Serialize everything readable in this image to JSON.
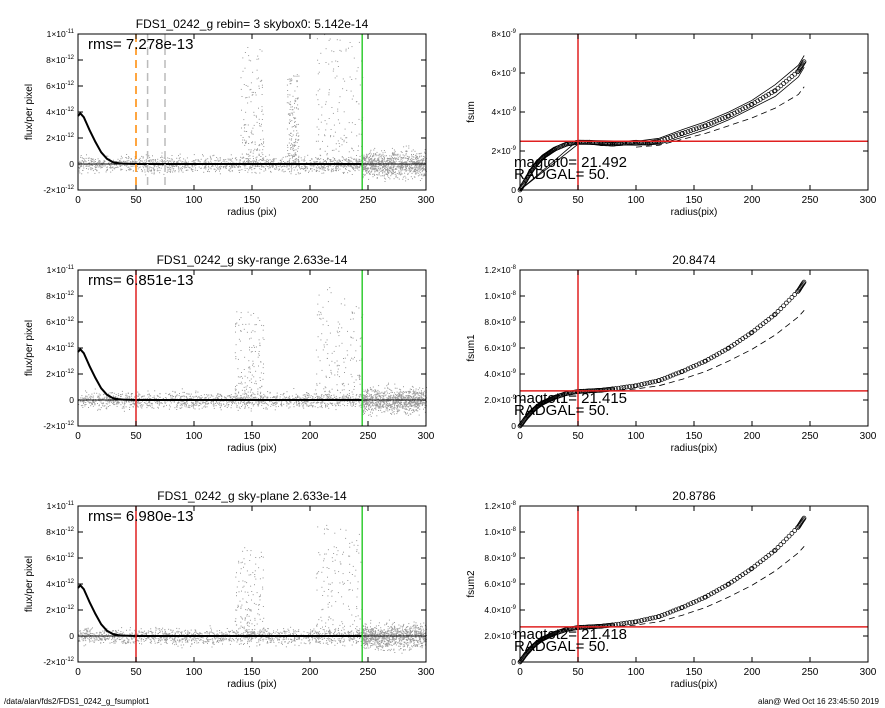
{
  "footer": {
    "left": "/data/alan/fds2/FDS1_0242_g_fsumplot1",
    "right": "alan@  Wed Oct 16 23:45:50 2019"
  },
  "colors": {
    "points": "#999999",
    "profile": "#000000",
    "red_line": "#e02020",
    "green_line": "#33cc33",
    "orange_dash": "#ff8800",
    "gray_dash": "#bbbbbb"
  },
  "chart_data": [
    {
      "type": "scatter",
      "title": "FDS1_0242_g rebin= 3    skybox0:  5.142e-14",
      "xlabel": "radius (pix)",
      "ylabel": "flux/per pixel",
      "xlim": [
        0,
        300
      ],
      "ylim": [
        -2e-12,
        1e-11
      ],
      "xticks": [
        0,
        50,
        100,
        150,
        200,
        250,
        300
      ],
      "yticks": [
        {
          "v": 1e-11,
          "m": "1×10",
          "e": "-11"
        },
        {
          "v": 8e-12,
          "m": "8×10",
          "e": "-12"
        },
        {
          "v": 6e-12,
          "m": "6×10",
          "e": "-12"
        },
        {
          "v": 4e-12,
          "m": "4×10",
          "e": "-12"
        },
        {
          "v": 2e-12,
          "m": "2×10",
          "e": "-12"
        },
        {
          "v": 0,
          "m": "0",
          "e": ""
        },
        {
          "v": -2e-12,
          "m": "-2×10",
          "e": "-12"
        }
      ],
      "annotations": [
        {
          "text": "rms= 7.278e-13"
        }
      ],
      "vlines": [
        {
          "x": 50,
          "color": "orange_dash",
          "style": "dash"
        },
        {
          "x": 60,
          "color": "gray_dash",
          "style": "dash"
        },
        {
          "x": 75,
          "color": "gray_dash",
          "style": "dash"
        },
        {
          "x": 245,
          "color": "green_line",
          "style": "solid"
        }
      ],
      "profile": {
        "x": [
          0,
          2,
          5,
          8,
          10,
          15,
          20,
          25,
          30,
          35,
          40,
          50,
          60,
          80,
          100,
          150,
          200,
          245
        ],
        "y": [
          3.7e-12,
          3.9e-12,
          3.6e-12,
          3e-12,
          2.6e-12,
          1.7e-12,
          9e-13,
          4e-13,
          1.5e-13,
          6e-14,
          2e-14,
          0,
          0,
          0,
          0,
          0,
          0,
          0
        ]
      },
      "scatter_clusters": [
        {
          "x": [
            0,
            250
          ],
          "y": [
            -1e-12,
            1e-12
          ]
        },
        {
          "x": [
            140,
            160
          ],
          "y": [
            0,
            9e-12
          ]
        },
        {
          "x": [
            180,
            190
          ],
          "y": [
            0,
            7e-12
          ]
        },
        {
          "x": [
            205,
            245
          ],
          "y": [
            0,
            1e-11
          ]
        },
        {
          "x": [
            245,
            300
          ],
          "y": [
            -1.8e-12,
            1.5e-12
          ]
        }
      ]
    },
    {
      "type": "line",
      "title": "",
      "xlabel": "radius(pix)",
      "ylabel": "fsum",
      "xlim": [
        0,
        300
      ],
      "ylim": [
        0,
        8e-09
      ],
      "xticks": [
        0,
        50,
        100,
        150,
        200,
        250,
        300
      ],
      "yticks": [
        {
          "v": 8e-09,
          "m": "8×10",
          "e": "-9"
        },
        {
          "v": 6e-09,
          "m": "6×10",
          "e": "-9"
        },
        {
          "v": 4e-09,
          "m": "4×10",
          "e": "-9"
        },
        {
          "v": 2e-09,
          "m": "2×10",
          "e": "-9"
        },
        {
          "v": 0,
          "m": "0",
          "e": ""
        }
      ],
      "annotations": [
        {
          "text": "magtot0=  21.492"
        },
        {
          "text": "RADGAL=    50."
        }
      ],
      "vline": 50,
      "hline": 2.5e-09,
      "series": [
        {
          "x": [
            0,
            5,
            10,
            15,
            20,
            25,
            30,
            40,
            50,
            60,
            70,
            80,
            90,
            100,
            110,
            120,
            140,
            160,
            180,
            200,
            220,
            240,
            245
          ],
          "y": [
            0,
            5e-10,
            1e-09,
            1.4e-09,
            1.7e-09,
            1.9e-09,
            2.1e-09,
            2.35e-09,
            2.45e-09,
            2.45e-09,
            2.38e-09,
            2.35e-09,
            2.4e-09,
            2.45e-09,
            2.4e-09,
            2.5e-09,
            2.9e-09,
            3.3e-09,
            3.8e-09,
            4.4e-09,
            5.1e-09,
            6.1e-09,
            6.6e-09
          ],
          "style": "circles"
        },
        {
          "x": [
            100,
            120,
            140,
            160,
            180,
            200,
            220,
            240,
            245
          ],
          "y": [
            2.2e-09,
            2.3e-09,
            2.6e-09,
            2.9e-09,
            3.3e-09,
            3.7e-09,
            4.2e-09,
            4.9e-09,
            5.3e-09
          ],
          "style": "dash"
        },
        {
          "x": [
            0,
            50,
            100,
            120,
            140,
            160,
            180,
            200,
            220,
            240,
            245
          ],
          "y": [
            0,
            2.55e-09,
            2.5e-09,
            2.65e-09,
            3.1e-09,
            3.5e-09,
            4e-09,
            4.6e-09,
            5.4e-09,
            6.4e-09,
            6.9e-09
          ],
          "style": "line"
        },
        {
          "x": [
            0,
            50,
            100,
            120,
            140,
            160,
            180,
            200,
            220,
            240,
            245
          ],
          "y": [
            0,
            2.35e-09,
            2.3e-09,
            2.35e-09,
            2.7e-09,
            3.1e-09,
            3.6e-09,
            4.2e-09,
            4.8e-09,
            5.8e-09,
            6.3e-09
          ],
          "style": "line"
        }
      ]
    },
    {
      "type": "scatter",
      "title": "FDS1_0242_g sky-range  2.633e-14",
      "xlabel": "radius (pix)",
      "ylabel": "flux/per pixel",
      "xlim": [
        0,
        300
      ],
      "ylim": [
        -2e-12,
        1e-11
      ],
      "xticks": [
        0,
        50,
        100,
        150,
        200,
        250,
        300
      ],
      "yticks": [
        {
          "v": 1e-11,
          "m": "1×10",
          "e": "-11"
        },
        {
          "v": 8e-12,
          "m": "8×10",
          "e": "-12"
        },
        {
          "v": 6e-12,
          "m": "6×10",
          "e": "-12"
        },
        {
          "v": 4e-12,
          "m": "4×10",
          "e": "-12"
        },
        {
          "v": 2e-12,
          "m": "2×10",
          "e": "-12"
        },
        {
          "v": 0,
          "m": "0",
          "e": ""
        },
        {
          "v": -2e-12,
          "m": "-2×10",
          "e": "-12"
        }
      ],
      "annotations": [
        {
          "text": "rms= 6.851e-13"
        }
      ],
      "vlines": [
        {
          "x": 50,
          "color": "red_line",
          "style": "solid"
        },
        {
          "x": 245,
          "color": "green_line",
          "style": "solid"
        }
      ],
      "profile": {
        "x": [
          0,
          2,
          5,
          8,
          10,
          15,
          20,
          25,
          30,
          35,
          40,
          50,
          60,
          80,
          100,
          150,
          200,
          245
        ],
        "y": [
          3.7e-12,
          3.9e-12,
          3.6e-12,
          3e-12,
          2.6e-12,
          1.7e-12,
          9e-13,
          4e-13,
          1.5e-13,
          6e-14,
          2e-14,
          0,
          0,
          0,
          0,
          0,
          0,
          0
        ]
      },
      "scatter_clusters": [
        {
          "x": [
            0,
            250
          ],
          "y": [
            -1e-12,
            1e-12
          ]
        },
        {
          "x": [
            135,
            160
          ],
          "y": [
            0,
            7e-12
          ]
        },
        {
          "x": [
            205,
            245
          ],
          "y": [
            0,
            9e-12
          ]
        },
        {
          "x": [
            245,
            300
          ],
          "y": [
            -1.6e-12,
            1.5e-12
          ]
        }
      ]
    },
    {
      "type": "line",
      "title": "20.8474",
      "xlabel": "radius(pix)",
      "ylabel": "fsum1",
      "xlim": [
        0,
        300
      ],
      "ylim": [
        0,
        1.2e-08
      ],
      "xticks": [
        0,
        50,
        100,
        150,
        200,
        250,
        300
      ],
      "yticks": [
        {
          "v": 1.2e-08,
          "m": "1.2×10",
          "e": "-8"
        },
        {
          "v": 1e-08,
          "m": "1.0×10",
          "e": "-8"
        },
        {
          "v": 8e-09,
          "m": "8.0×10",
          "e": "-9"
        },
        {
          "v": 6e-09,
          "m": "6.0×10",
          "e": "-9"
        },
        {
          "v": 4e-09,
          "m": "4.0×10",
          "e": "-9"
        },
        {
          "v": 2e-09,
          "m": "2.0×10",
          "e": "-9"
        },
        {
          "v": 0,
          "m": "0",
          "e": ""
        }
      ],
      "annotations": [
        {
          "text": "magtot1=  21.415"
        },
        {
          "text": "RADGAL=    50."
        }
      ],
      "vline": 50,
      "hline": 2.7e-09,
      "series": [
        {
          "x": [
            0,
            5,
            10,
            15,
            20,
            25,
            30,
            40,
            50,
            60,
            70,
            80,
            100,
            120,
            140,
            160,
            180,
            200,
            220,
            240,
            245
          ],
          "y": [
            0,
            6e-10,
            1.1e-09,
            1.5e-09,
            1.8e-09,
            2e-09,
            2.2e-09,
            2.5e-09,
            2.65e-09,
            2.7e-09,
            2.75e-09,
            2.85e-09,
            3.1e-09,
            3.5e-09,
            4.2e-09,
            5e-09,
            6e-09,
            7.2e-09,
            8.6e-09,
            1.04e-08,
            1.11e-08
          ],
          "style": "circles"
        },
        {
          "x": [
            60,
            80,
            100,
            120,
            140,
            160,
            180,
            200,
            220,
            240,
            245
          ],
          "y": [
            2.6e-09,
            2.7e-09,
            2.85e-09,
            3.1e-09,
            3.6e-09,
            4.2e-09,
            5e-09,
            5.9e-09,
            7e-09,
            8.4e-09,
            8.9e-09
          ],
          "style": "dash"
        }
      ]
    },
    {
      "type": "scatter",
      "title": "FDS1_0242_g sky-plane  2.633e-14",
      "xlabel": "radius (pix)",
      "ylabel": "flux/per pixel",
      "xlim": [
        0,
        300
      ],
      "ylim": [
        -2e-12,
        1e-11
      ],
      "xticks": [
        0,
        50,
        100,
        150,
        200,
        250,
        300
      ],
      "yticks": [
        {
          "v": 1e-11,
          "m": "1×10",
          "e": "-11"
        },
        {
          "v": 8e-12,
          "m": "8×10",
          "e": "-12"
        },
        {
          "v": 6e-12,
          "m": "6×10",
          "e": "-12"
        },
        {
          "v": 4e-12,
          "m": "4×10",
          "e": "-12"
        },
        {
          "v": 2e-12,
          "m": "2×10",
          "e": "-12"
        },
        {
          "v": 0,
          "m": "0",
          "e": ""
        },
        {
          "v": -2e-12,
          "m": "-2×10",
          "e": "-12"
        }
      ],
      "annotations": [
        {
          "text": "rms= 6.980e-13"
        }
      ],
      "vlines": [
        {
          "x": 50,
          "color": "red_line",
          "style": "solid"
        },
        {
          "x": 245,
          "color": "green_line",
          "style": "solid"
        }
      ],
      "profile": {
        "x": [
          0,
          2,
          5,
          8,
          10,
          15,
          20,
          25,
          30,
          35,
          40,
          50,
          60,
          80,
          100,
          150,
          200,
          245
        ],
        "y": [
          3.7e-12,
          3.9e-12,
          3.6e-12,
          3e-12,
          2.6e-12,
          1.7e-12,
          9e-13,
          4e-13,
          1.5e-13,
          6e-14,
          2e-14,
          0,
          0,
          0,
          0,
          0,
          0,
          0
        ]
      },
      "scatter_clusters": [
        {
          "x": [
            0,
            250
          ],
          "y": [
            -1e-12,
            1e-12
          ]
        },
        {
          "x": [
            135,
            160
          ],
          "y": [
            0,
            7e-12
          ]
        },
        {
          "x": [
            205,
            245
          ],
          "y": [
            0,
            9e-12
          ]
        },
        {
          "x": [
            245,
            300
          ],
          "y": [
            -1.6e-12,
            1.5e-12
          ]
        }
      ]
    },
    {
      "type": "line",
      "title": "20.8786",
      "xlabel": "radius(pix)",
      "ylabel": "fsum2",
      "xlim": [
        0,
        300
      ],
      "ylim": [
        0,
        1.2e-08
      ],
      "xticks": [
        0,
        50,
        100,
        150,
        200,
        250,
        300
      ],
      "yticks": [
        {
          "v": 1.2e-08,
          "m": "1.2×10",
          "e": "-8"
        },
        {
          "v": 1e-08,
          "m": "1.0×10",
          "e": "-8"
        },
        {
          "v": 8e-09,
          "m": "8.0×10",
          "e": "-9"
        },
        {
          "v": 6e-09,
          "m": "6.0×10",
          "e": "-9"
        },
        {
          "v": 4e-09,
          "m": "4.0×10",
          "e": "-9"
        },
        {
          "v": 2e-09,
          "m": "2.0×10",
          "e": "-9"
        },
        {
          "v": 0,
          "m": "0",
          "e": ""
        }
      ],
      "annotations": [
        {
          "text": "magtot2=  21.418"
        },
        {
          "text": "RADGAL=    50."
        }
      ],
      "vline": 50,
      "hline": 2.7e-09,
      "series": [
        {
          "x": [
            0,
            5,
            10,
            15,
            20,
            25,
            30,
            40,
            50,
            60,
            70,
            80,
            100,
            120,
            140,
            160,
            180,
            200,
            220,
            240,
            245
          ],
          "y": [
            0,
            6e-10,
            1.1e-09,
            1.5e-09,
            1.8e-09,
            2e-09,
            2.2e-09,
            2.5e-09,
            2.65e-09,
            2.7e-09,
            2.75e-09,
            2.85e-09,
            3.1e-09,
            3.5e-09,
            4.2e-09,
            5e-09,
            6e-09,
            7.2e-09,
            8.6e-09,
            1.04e-08,
            1.11e-08
          ],
          "style": "circles"
        },
        {
          "x": [
            60,
            80,
            100,
            120,
            140,
            160,
            180,
            200,
            220,
            240,
            245
          ],
          "y": [
            2.6e-09,
            2.7e-09,
            2.85e-09,
            3.1e-09,
            3.6e-09,
            4.2e-09,
            5e-09,
            5.9e-09,
            7e-09,
            8.4e-09,
            8.9e-09
          ],
          "style": "dash"
        }
      ]
    }
  ]
}
